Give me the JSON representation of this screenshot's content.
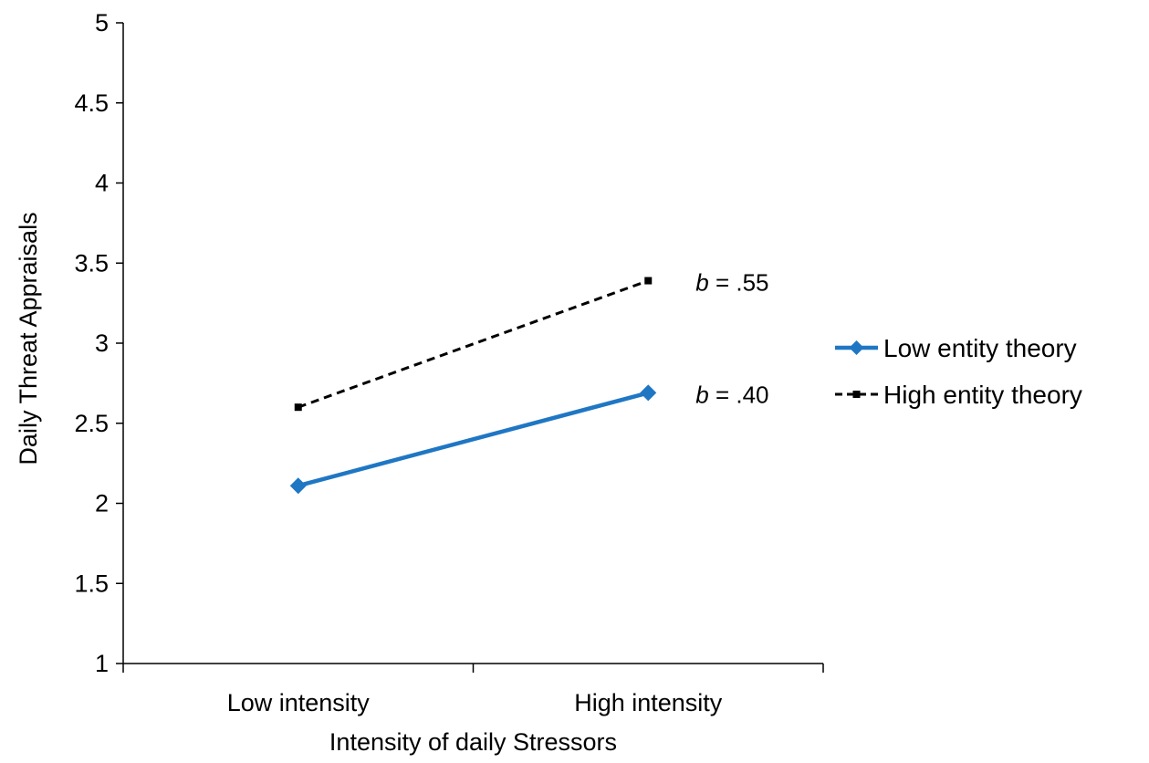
{
  "chart_data": {
    "type": "line",
    "title": "",
    "xlabel": "Intensity of daily Stressors",
    "ylabel": "Daily Threat Appraisals",
    "categories": [
      "Low intensity",
      "High intensity"
    ],
    "ylim": [
      1,
      5
    ],
    "yticks": [
      "1",
      "1.5",
      "2",
      "2.5",
      "3",
      "3.5",
      "4",
      "4.5",
      "5"
    ],
    "grid": false,
    "legend_position": "right",
    "series": [
      {
        "name": "Low entity theory",
        "values": [
          2.11,
          2.69
        ],
        "color": "#1f77c4",
        "style": "solid",
        "marker": "diamond",
        "annotation_prefix": "b",
        "annotation_value": " = .40"
      },
      {
        "name": "High entity theory",
        "values": [
          2.6,
          3.39
        ],
        "color": "#000000",
        "style": "dashed",
        "marker": "square",
        "annotation_prefix": "b",
        "annotation_value": " = .55"
      }
    ]
  }
}
